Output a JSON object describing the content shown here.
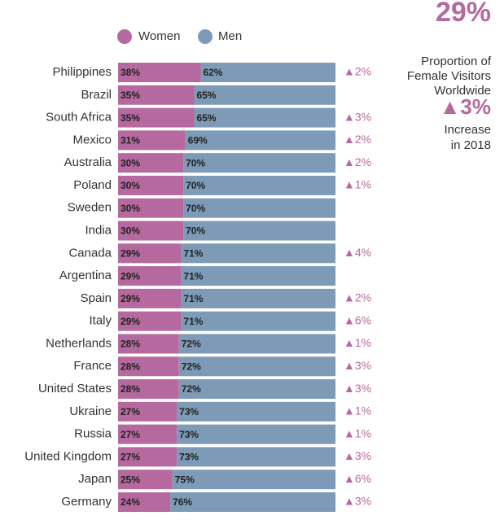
{
  "chart_data": {
    "type": "stacked_bar_horizontal",
    "categories": [
      "Philippines",
      "Brazil",
      "South Africa",
      "Mexico",
      "Australia",
      "Poland",
      "Sweden",
      "India",
      "Canada",
      "Argentina",
      "Spain",
      "Italy",
      "Netherlands",
      "France",
      "United States",
      "Ukraine",
      "Russia",
      "United Kingdom",
      "Japan",
      "Germany"
    ],
    "series": [
      {
        "name": "Women",
        "color": "#b5699f",
        "values": [
          38,
          35,
          35,
          31,
          30,
          30,
          30,
          30,
          29,
          29,
          29,
          29,
          28,
          28,
          28,
          27,
          27,
          27,
          25,
          24
        ],
        "value_labels": [
          "38%",
          "35%",
          "35%",
          "31%",
          "30%",
          "30%",
          "30%",
          "30%",
          "29%",
          "29%",
          "29%",
          "29%",
          "28%",
          "28%",
          "28%",
          "27%",
          "27%",
          "27%",
          "25%",
          "24%"
        ]
      },
      {
        "name": "Men",
        "color": "#7d9bb6",
        "values": [
          62,
          65,
          65,
          69,
          70,
          70,
          70,
          70,
          71,
          71,
          71,
          71,
          72,
          72,
          72,
          73,
          73,
          73,
          75,
          76
        ],
        "value_labels": [
          "62%",
          "65%",
          "65%",
          "69%",
          "70%",
          "70%",
          "70%",
          "70%",
          "71%",
          "71%",
          "71%",
          "71%",
          "72%",
          "72%",
          "72%",
          "73%",
          "73%",
          "73%",
          "75%",
          "76%"
        ]
      }
    ],
    "change": {
      "color": "#b5699f",
      "values": [
        2,
        null,
        3,
        2,
        2,
        1,
        null,
        null,
        4,
        null,
        2,
        6,
        1,
        3,
        3,
        1,
        1,
        3,
        6,
        3
      ],
      "value_labels": [
        "▲2%",
        null,
        "▲3%",
        "▲2%",
        "▲2%",
        "▲1%",
        null,
        null,
        "▲4%",
        null,
        "▲2%",
        "▲6%",
        "▲1%",
        "▲3%",
        "▲3%",
        "▲1%",
        "▲1%",
        "▲3%",
        "▲6%",
        "▲3%"
      ]
    },
    "xlim": [
      0,
      100
    ],
    "annotations": [
      "29%",
      "Proportion of",
      "Female Visitors",
      "Worldwide",
      "▲3%",
      "Increase",
      "in 2018"
    ]
  }
}
